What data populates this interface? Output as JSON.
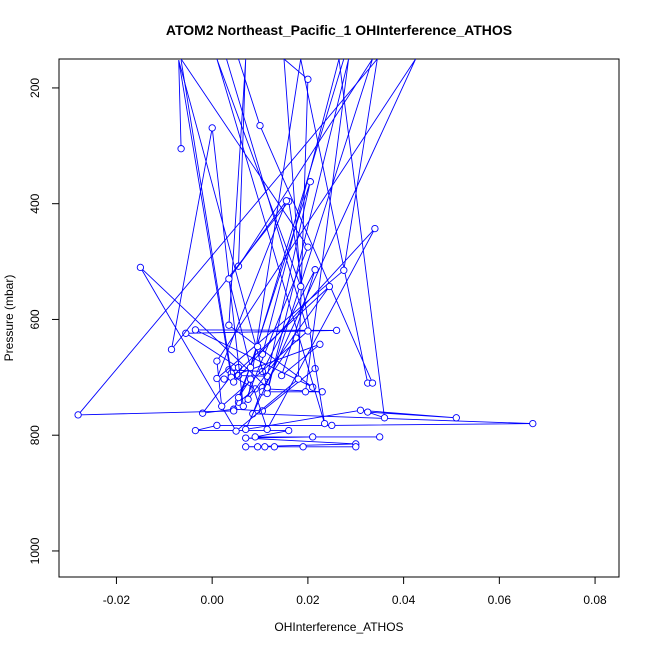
{
  "chart_data": {
    "type": "line",
    "title": "ATOM2 Northeast_Pacific_1 OHInterference_ATHOS",
    "xlabel": "OHInterference_ATHOS",
    "ylabel": "Pressure (mbar)",
    "xlim": [
      -0.032,
      0.085
    ],
    "ylim": [
      1045,
      150
    ],
    "y_inverted": true,
    "x_ticks": [
      -0.02,
      0.0,
      0.02,
      0.04,
      0.06,
      0.08
    ],
    "x_tick_labels": [
      "-0.02",
      "0.00",
      "0.02",
      "0.04",
      "0.06",
      "0.08"
    ],
    "y_ticks": [
      200,
      400,
      600,
      800,
      1000
    ],
    "y_tick_labels": [
      "200",
      "400",
      "600",
      "800",
      "1000"
    ],
    "grid": false,
    "legend": "none",
    "series": [
      {
        "color": "#0000ff",
        "marker": "open-circle",
        "points": [
          {
            "x": 0.0175,
            "y": 632
          },
          {
            "x": 0.0105,
            "y": 718
          },
          {
            "x": 0.0085,
            "y": 763
          },
          {
            "x": 0.067,
            "y": 780
          },
          {
            "x": 0.025,
            "y": 783
          },
          {
            "x": 0.001,
            "y": 783
          },
          {
            "x": -0.0035,
            "y": 792
          },
          {
            "x": 0.016,
            "y": 792
          },
          {
            "x": 0.009,
            "y": 803
          },
          {
            "x": 0.035,
            "y": 803
          },
          {
            "x": 0.021,
            "y": 803
          },
          {
            "x": 0.007,
            "y": 805
          },
          {
            "x": 0.03,
            "y": 815
          },
          {
            "x": 0.007,
            "y": 820
          },
          {
            "x": 0.03,
            "y": 820
          },
          {
            "x": 0.011,
            "y": 820
          },
          {
            "x": 0.019,
            "y": 820
          },
          {
            "x": 0.013,
            "y": 820
          },
          {
            "x": 0.0095,
            "y": 820
          }
        ]
      },
      {
        "color": "#0000ff",
        "marker": "open-circle",
        "points": [
          {
            "x": 0.0215,
            "y": 685
          },
          {
            "x": 0.0105,
            "y": 758
          },
          {
            "x": 0.0045,
            "y": 755
          },
          {
            "x": -0.002,
            "y": 762
          },
          {
            "x": 0.004,
            "y": 697
          },
          {
            "x": 0.009,
            "y": 720
          },
          {
            "x": 0.0055,
            "y": 743
          },
          {
            "x": 0.0205,
            "y": 362
          },
          {
            "x": 0.0115,
            "y": 698
          },
          {
            "x": 0.0055,
            "y": 697
          },
          {
            "x": 0.0025,
            "y": 703
          },
          {
            "x": 0.0225,
            "y": 643
          },
          {
            "x": 0.0145,
            "y": 697
          },
          {
            "x": 0.0215,
            "y": 514
          },
          {
            "x": 0.0105,
            "y": 690
          },
          {
            "x": 0.0035,
            "y": 687
          }
        ]
      },
      {
        "color": "#0000ff",
        "marker": "open-circle",
        "points": [
          {
            "x": -0.0065,
            "y": 152
          },
          {
            "x": 0.004,
            "y": 693
          },
          {
            "x": 0.0055,
            "y": 683
          },
          {
            "x": -0.0055,
            "y": 624
          },
          {
            "x": 0.026,
            "y": 619
          },
          {
            "x": -0.0035,
            "y": 618
          },
          {
            "x": 0.021,
            "y": 717
          },
          {
            "x": 0.0035,
            "y": 610
          },
          {
            "x": 0.007,
            "y": 150
          },
          {
            "x": 0.0055,
            "y": 508
          },
          {
            "x": 0.0335,
            "y": 150
          },
          {
            "x": 0.0115,
            "y": 720
          },
          {
            "x": 0.023,
            "y": 725
          },
          {
            "x": 0.0105,
            "y": 725
          },
          {
            "x": 0.0195,
            "y": 725
          },
          {
            "x": 0.0285,
            "y": 150
          },
          {
            "x": 0.0115,
            "y": 728
          }
        ]
      },
      {
        "color": "#0000ff",
        "marker": "open-circle",
        "points": [
          {
            "x": -0.007,
            "y": 152
          },
          {
            "x": 0.0115,
            "y": 718
          },
          {
            "x": -0.015,
            "y": 510
          },
          {
            "x": 0.005,
            "y": 793
          },
          {
            "x": 0.018,
            "y": 703
          },
          {
            "x": 0.02,
            "y": 185
          },
          {
            "x": 0.015,
            "y": 150
          },
          {
            "x": 0.0185,
            "y": 543
          },
          {
            "x": 0.001,
            "y": 150
          },
          {
            "x": 0.0235,
            "y": 780
          },
          {
            "x": 0.016,
            "y": 396
          },
          {
            "x": -0.0085,
            "y": 652
          },
          {
            "x": 0.0,
            "y": 269
          },
          {
            "x": 0.0065,
            "y": 750
          },
          {
            "x": 0.02,
            "y": 475
          },
          {
            "x": -0.0065,
            "y": 150
          }
        ]
      },
      {
        "color": "#0000ff",
        "marker": "open-circle",
        "points": [
          {
            "x": -0.0065,
            "y": 305
          },
          {
            "x": -0.007,
            "y": 152
          },
          {
            "x": 0.004,
            "y": 700
          },
          {
            "x": 0.0245,
            "y": 543
          },
          {
            "x": 0.0075,
            "y": 738
          },
          {
            "x": 0.0185,
            "y": 150
          },
          {
            "x": 0.0325,
            "y": 710
          },
          {
            "x": 0.0335,
            "y": 710
          },
          {
            "x": 0.01,
            "y": 265
          },
          {
            "x": 0.0055,
            "y": 150
          }
        ]
      },
      {
        "color": "#0000ff",
        "marker": "open-circle",
        "points": [
          {
            "x": 0.003,
            "y": 150
          },
          {
            "x": 0.02,
            "y": 620
          },
          {
            "x": 0.002,
            "y": 750
          },
          {
            "x": 0.001,
            "y": 672
          },
          {
            "x": 0.0425,
            "y": 150
          },
          {
            "x": 0.007,
            "y": 790
          },
          {
            "x": 0.031,
            "y": 757
          },
          {
            "x": 0.051,
            "y": 770
          },
          {
            "x": 0.0325,
            "y": 760
          },
          {
            "x": 0.036,
            "y": 770
          },
          {
            "x": 0.0265,
            "y": 150
          },
          {
            "x": 0.0105,
            "y": 660
          }
        ]
      },
      {
        "color": "#0000ff",
        "marker": "open-circle",
        "points": [
          {
            "x": 0.0275,
            "y": 150
          },
          {
            "x": 0.008,
            "y": 683
          },
          {
            "x": 0.0035,
            "y": 530
          },
          {
            "x": 0.0155,
            "y": 395
          },
          {
            "x": 0.001,
            "y": 702
          },
          {
            "x": 0.0275,
            "y": 515
          },
          {
            "x": 0.0345,
            "y": 150
          },
          {
            "x": -0.028,
            "y": 765
          },
          {
            "x": 0.0045,
            "y": 758
          },
          {
            "x": 0.0095,
            "y": 647
          },
          {
            "x": 0.0055,
            "y": 735
          },
          {
            "x": 0.008,
            "y": 703
          },
          {
            "x": 0.0115,
            "y": 790
          },
          {
            "x": 0.034,
            "y": 443
          },
          {
            "x": 0.0045,
            "y": 708
          }
        ]
      }
    ]
  }
}
